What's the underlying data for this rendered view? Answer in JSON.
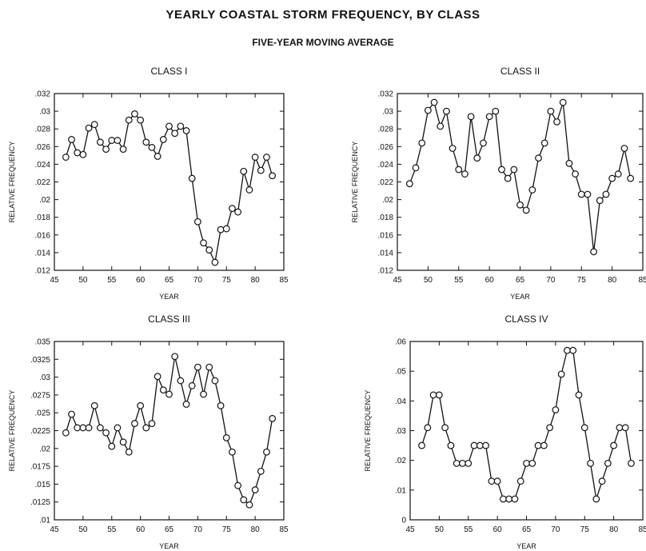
{
  "title": "YEARLY COASTAL STORM FREQUENCY, BY CLASS",
  "subtitle": "FIVE-YEAR MOVING AVERAGE",
  "chart_data": [
    {
      "type": "line",
      "title": "CLASS I",
      "xlabel": "YEAR",
      "ylabel": "RELATIVE FREQUENCY",
      "xlim": [
        45,
        85
      ],
      "ylim": [
        0.012,
        0.032
      ],
      "xticks": [
        "45",
        "50",
        "55",
        "60",
        "65",
        "70",
        "75",
        "80",
        "85"
      ],
      "yticks": [
        ".012",
        ".014",
        ".016",
        ".018",
        ".02",
        ".022",
        ".024",
        ".026",
        ".028",
        ".03",
        ".032"
      ],
      "x": [
        47,
        48,
        49,
        50,
        51,
        52,
        53,
        54,
        55,
        56,
        57,
        58,
        59,
        60,
        61,
        62,
        63,
        64,
        65,
        66,
        67,
        68,
        69,
        70,
        71,
        72,
        73,
        74,
        75,
        76,
        77,
        78,
        79,
        80,
        81,
        82,
        83
      ],
      "values": [
        0.0248,
        0.0268,
        0.0253,
        0.0251,
        0.0281,
        0.0285,
        0.0265,
        0.0257,
        0.0267,
        0.0267,
        0.0257,
        0.029,
        0.0297,
        0.029,
        0.0265,
        0.0259,
        0.0249,
        0.0268,
        0.0283,
        0.0275,
        0.0283,
        0.0278,
        0.0224,
        0.0175,
        0.0151,
        0.0143,
        0.0129,
        0.0166,
        0.0167,
        0.019,
        0.0186,
        0.0232,
        0.0211,
        0.0248,
        0.0233,
        0.0248,
        0.0227
      ]
    },
    {
      "type": "line",
      "title": "CLASS II",
      "xlabel": "YEAR",
      "ylabel": "RELATIVE FREQUENCY",
      "xlim": [
        45,
        85
      ],
      "ylim": [
        0.012,
        0.032
      ],
      "xticks": [
        "45",
        "50",
        "55",
        "60",
        "65",
        "70",
        "75",
        "80",
        "85"
      ],
      "yticks": [
        ".012",
        ".014",
        ".016",
        ".018",
        ".02",
        ".022",
        ".024",
        ".026",
        ".028",
        ".03",
        ".032"
      ],
      "x": [
        47,
        48,
        49,
        50,
        51,
        52,
        53,
        54,
        55,
        56,
        57,
        58,
        59,
        60,
        61,
        62,
        63,
        64,
        65,
        66,
        67,
        68,
        69,
        70,
        71,
        72,
        73,
        74,
        75,
        76,
        77,
        78,
        79,
        80,
        81,
        82,
        83
      ],
      "values": [
        0.0218,
        0.0236,
        0.0264,
        0.0301,
        0.031,
        0.0283,
        0.03,
        0.0258,
        0.0234,
        0.0229,
        0.0294,
        0.0247,
        0.0264,
        0.0294,
        0.03,
        0.0234,
        0.0224,
        0.0234,
        0.0194,
        0.0188,
        0.0211,
        0.0247,
        0.0264,
        0.03,
        0.0288,
        0.031,
        0.0241,
        0.0229,
        0.0206,
        0.0206,
        0.0141,
        0.0199,
        0.0206,
        0.0224,
        0.0229,
        0.0258,
        0.0224
      ]
    },
    {
      "type": "line",
      "title": "CLASS III",
      "xlabel": "YEAR",
      "ylabel": "RELATIVE FREQUENCY",
      "xlim": [
        45,
        85
      ],
      "ylim": [
        0.01,
        0.035
      ],
      "xticks": [
        "45",
        "50",
        "55",
        "60",
        "65",
        "70",
        "75",
        "80",
        "85"
      ],
      "yticks": [
        ".01",
        ".0125",
        ".015",
        ".0175",
        ".02",
        ".0225",
        ".025",
        ".0275",
        ".03",
        ".0325",
        ".035"
      ],
      "x": [
        47,
        48,
        49,
        50,
        51,
        52,
        53,
        54,
        55,
        56,
        57,
        58,
        59,
        60,
        61,
        62,
        63,
        64,
        65,
        66,
        67,
        68,
        69,
        70,
        71,
        72,
        73,
        74,
        75,
        76,
        77,
        78,
        79,
        80,
        81,
        82,
        83
      ],
      "values": [
        0.0222,
        0.0248,
        0.0229,
        0.0229,
        0.0229,
        0.026,
        0.0229,
        0.0222,
        0.0203,
        0.0229,
        0.0209,
        0.0195,
        0.0235,
        0.026,
        0.0229,
        0.0235,
        0.0301,
        0.0282,
        0.0276,
        0.0329,
        0.0295,
        0.0262,
        0.0288,
        0.0314,
        0.0276,
        0.0314,
        0.0295,
        0.026,
        0.0215,
        0.0195,
        0.0148,
        0.0128,
        0.0121,
        0.0142,
        0.0168,
        0.0195,
        0.0242
      ]
    },
    {
      "type": "line",
      "title": "CLASS IV",
      "xlabel": "YEAR",
      "ylabel": "RELATIVE FREQUENCY",
      "xlim": [
        45,
        85
      ],
      "ylim": [
        0,
        0.06
      ],
      "xticks": [
        "45",
        "50",
        "55",
        "60",
        "65",
        "70",
        "75",
        "80",
        "85"
      ],
      "yticks": [
        "0",
        ".01",
        ".02",
        ".03",
        ".04",
        ".05",
        ".06"
      ],
      "x": [
        47,
        48,
        49,
        50,
        51,
        52,
        53,
        54,
        55,
        56,
        57,
        58,
        59,
        60,
        61,
        62,
        63,
        64,
        65,
        66,
        67,
        68,
        69,
        70,
        71,
        72,
        73,
        74,
        75,
        76,
        77,
        78,
        79,
        80,
        81,
        82,
        83
      ],
      "values": [
        0.025,
        0.031,
        0.042,
        0.042,
        0.031,
        0.025,
        0.019,
        0.019,
        0.019,
        0.025,
        0.025,
        0.025,
        0.013,
        0.013,
        0.007,
        0.007,
        0.007,
        0.013,
        0.019,
        0.019,
        0.025,
        0.025,
        0.031,
        0.037,
        0.049,
        0.057,
        0.057,
        0.042,
        0.031,
        0.019,
        0.007,
        0.013,
        0.019,
        0.025,
        0.031,
        0.031,
        0.019
      ]
    }
  ]
}
